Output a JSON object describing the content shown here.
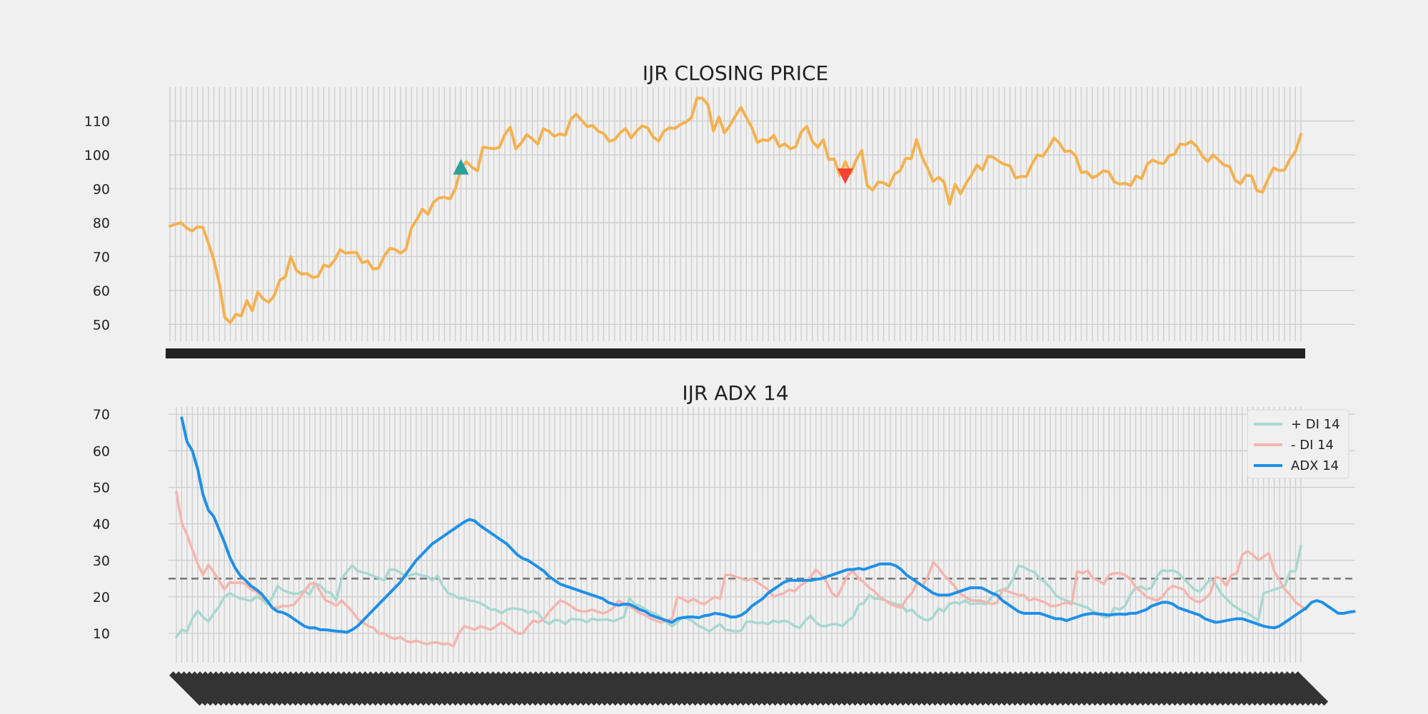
{
  "chart_data": [
    {
      "type": "line",
      "title": "IJR CLOSING PRICE",
      "xlabel": "",
      "ylabel": "",
      "ylim": [
        45,
        120
      ],
      "yticks": [
        50,
        60,
        70,
        80,
        90,
        100,
        110
      ],
      "grid": true,
      "series": [
        {
          "name": "",
          "color": "#f5b14e",
          "values": [
            79,
            79.5,
            80,
            78.5,
            77.5,
            78.8,
            78.6,
            74,
            69,
            62,
            52,
            50.5,
            53,
            52.5,
            57,
            54,
            59.5,
            57.5,
            56.5,
            58.5,
            63,
            64,
            70,
            66,
            64.8,
            65,
            63.8,
            64.2,
            67.5,
            67,
            69,
            72,
            71,
            71.2,
            71.2,
            68.2,
            68.7,
            66.3,
            66.6,
            70,
            72.4,
            72.1,
            71,
            72.2,
            78.5,
            81,
            84,
            82.5,
            86,
            87.3,
            87.5,
            87,
            90,
            96,
            98,
            96.4,
            95.3,
            102.3,
            102,
            101.8,
            102.2,
            106,
            108.2,
            101.8,
            103.5,
            106,
            104.7,
            103.2,
            107.7,
            107,
            105.5,
            106.2,
            105.8,
            110.5,
            112,
            110.2,
            108.3,
            108.7,
            107,
            106.3,
            104,
            104.5,
            106.5,
            107.8,
            105,
            107,
            108.6,
            108,
            105.3,
            104.1,
            107,
            108,
            107.8,
            109,
            109.7,
            111,
            116.8,
            116.7,
            114.8,
            107,
            111.2,
            106.5,
            108.7,
            111.5,
            114,
            111,
            108,
            103.7,
            104.5,
            104.2,
            105.8,
            102.4,
            103.3,
            101.8,
            102.5,
            106.8,
            108.4,
            104,
            102.2,
            104.5,
            98.6,
            98.8,
            94,
            98,
            94.5,
            98.6,
            101.3,
            91,
            89.6,
            92,
            91.8,
            90.8,
            94.4,
            95.3,
            99,
            98.9,
            104.5,
            99.4,
            96,
            92.2,
            93.4,
            92,
            85.4,
            91.3,
            88.5,
            91.6,
            94,
            97,
            95.5,
            99.6,
            99.3,
            98.1,
            97.2,
            96.8,
            93.2,
            93.6,
            93.6,
            97.2,
            100,
            99.6,
            102,
            105,
            103.5,
            101,
            101.2,
            99.6,
            94.8,
            95,
            93.2,
            94,
            95.3,
            95,
            92,
            91.4,
            91.6,
            91,
            93.8,
            93,
            97.2,
            98.5,
            97.7,
            97.4,
            99.8,
            100.2,
            103.2,
            103,
            104,
            102.5,
            99.8,
            98,
            100,
            98.5,
            97,
            96.6,
            92.6,
            91.5,
            94,
            93.8,
            89.4,
            89,
            92.9,
            96.2,
            95.4,
            95.5,
            98.7,
            101,
            106.1
          ]
        }
      ],
      "markers": [
        {
          "kind": "buy",
          "symbol": "triangle-up",
          "color": "#2aa198",
          "index": 53,
          "y": 96.5
        },
        {
          "kind": "sell",
          "symbol": "triangle-down",
          "color": "#f44336",
          "index": 123,
          "y": 93.7
        }
      ]
    },
    {
      "type": "line",
      "title": "IJR ADX 14",
      "xlabel": "",
      "ylabel": "",
      "ylim": [
        2,
        72
      ],
      "yticks": [
        10,
        20,
        30,
        40,
        50,
        60,
        70
      ],
      "grid": true,
      "hline": {
        "y": 25,
        "color": "#777777",
        "style": "dashed"
      },
      "legend": "top-right",
      "series": [
        {
          "name": "+ DI 14",
          "color": "#a8d8cf",
          "values": [
            9,
            11,
            10.5,
            14,
            16.2,
            14.5,
            13.2,
            15.5,
            17.3,
            20,
            21,
            20.3,
            19.5,
            19.3,
            18.8,
            20.1,
            19.3,
            18,
            19.8,
            23,
            21.8,
            21.3,
            20.8,
            21,
            21.7,
            20.6,
            23.5,
            23.2,
            21.5,
            21.1,
            19,
            25,
            26.9,
            28.6,
            27.1,
            26.7,
            26.3,
            25.7,
            25.2,
            24.5,
            27.5,
            27.4,
            26.7,
            25.6,
            26,
            26.4,
            25.8,
            25.7,
            24.5,
            25.8,
            23,
            21,
            20.5,
            19.6,
            19.6,
            19,
            18.8,
            18.3,
            17.5,
            16.5,
            16.5,
            15.5,
            16.5,
            16.8,
            16.7,
            16.5,
            15.6,
            16.2,
            15.3,
            13.4,
            12.6,
            13.7,
            13.5,
            12.6,
            14,
            13.8,
            13.8,
            13,
            14,
            13.6,
            13.8,
            13.8,
            13.3,
            13.9,
            14.5,
            19.6,
            18,
            17.5,
            16.6,
            15.8,
            15.3,
            14.3,
            13,
            12,
            13,
            14.5,
            14,
            13.2,
            12,
            11.4,
            10.5,
            11.6,
            12.5,
            11,
            10.8,
            10.5,
            10.8,
            13.2,
            13.2,
            12.8,
            13,
            12.5,
            13.5,
            13,
            13.5,
            13,
            12,
            11.5,
            13.5,
            14.8,
            13,
            12,
            12,
            12.5,
            12.5,
            12,
            13.5,
            14.5,
            17.8,
            18.3,
            20.5,
            19.5,
            19.5,
            19,
            18.5,
            18,
            17.8,
            16,
            16.5,
            15,
            14,
            13.5,
            14.5,
            16.8,
            16,
            18,
            18.5,
            18.2,
            19,
            18,
            18.2,
            18.2,
            18,
            20,
            21.5,
            22,
            22.5,
            25,
            28.5,
            28.2,
            27.3,
            26.8,
            25,
            24,
            22.5,
            20.5,
            19.5,
            19,
            18.5,
            18,
            17.5,
            17,
            16,
            15.5,
            14.5,
            14.5,
            17,
            16.5,
            17.5,
            20.5,
            22.5,
            22.8,
            22,
            22.5,
            25.7,
            27.3,
            27,
            27.3,
            26.5,
            25,
            23.5,
            22,
            21.5,
            23,
            25,
            23.5,
            21,
            19.5,
            18,
            17,
            16,
            15.5,
            14.5,
            13.5,
            21,
            21.5,
            22,
            22.5,
            23,
            27,
            27,
            34
          ]
        },
        {
          "name": "- DI 14",
          "color": "#f5b5ad",
          "values": [
            48.7,
            40.2,
            37,
            33,
            29,
            26,
            28.8,
            26.8,
            24.5,
            22,
            24,
            23.8,
            24,
            23.5,
            22,
            21.5,
            20,
            19,
            17,
            17,
            17.5,
            17.5,
            17.8,
            19.5,
            21.5,
            23.5,
            23.8,
            21.5,
            19,
            18.5,
            17.5,
            19,
            17.5,
            16,
            14,
            13,
            12,
            11.5,
            10,
            10,
            9,
            8.5,
            9,
            8,
            7.5,
            8,
            7.5,
            7,
            7.5,
            7.5,
            7,
            7.2,
            6.5,
            10,
            12,
            11.5,
            11,
            12,
            11.5,
            11,
            12,
            13,
            12,
            11,
            10,
            10,
            12,
            13.5,
            13,
            14,
            16,
            17.5,
            19,
            18.5,
            17.5,
            16.5,
            16,
            16,
            16.5,
            16,
            15.5,
            16,
            17,
            19,
            18,
            17.5,
            16.5,
            15.5,
            15,
            14,
            13.5,
            13,
            13.5,
            14,
            20,
            19.5,
            18.5,
            19.5,
            18.5,
            18,
            19,
            20,
            19.5,
            26,
            26,
            25.5,
            25,
            24.5,
            25,
            24,
            23,
            22,
            20,
            20.5,
            21,
            22,
            21.5,
            23,
            24,
            25.5,
            27.5,
            26,
            24,
            21,
            20,
            23,
            26,
            27,
            25,
            24,
            22.5,
            21.5,
            20,
            19,
            18,
            17.5,
            17,
            19.5,
            21,
            24,
            23,
            25.5,
            29.5,
            28,
            26,
            24.5,
            23,
            21,
            20,
            19,
            19,
            19,
            18.5,
            18,
            18.5,
            22,
            21.5,
            21,
            20.5,
            20.5,
            19,
            19.5,
            19,
            18.5,
            17.5,
            17.5,
            18,
            18.5,
            18,
            27,
            26.5,
            27.2,
            25,
            24.5,
            23.5,
            26,
            26.5,
            26.5,
            26,
            25,
            22.5,
            21.5,
            20,
            19.5,
            19,
            20,
            22,
            23,
            22.5,
            22,
            20,
            19,
            18.5,
            19.5,
            21,
            25.5,
            25,
            23,
            26,
            26.5,
            31.5,
            32.5,
            31.5,
            30,
            31,
            32,
            27,
            24.5,
            22,
            20.5,
            18.5,
            17.5,
            16.5
          ]
        },
        {
          "name": "ADX 14",
          "color": "#1e90e8",
          "values": [
            null,
            69,
            62.5,
            60,
            55,
            48,
            43.8,
            42,
            38.5,
            35,
            31,
            28,
            25.8,
            24.5,
            23,
            22,
            20.8,
            19,
            17,
            16,
            15.7,
            15,
            14,
            13,
            12,
            11.5,
            11.5,
            11,
            11,
            10.8,
            10.6,
            10.5,
            10.3,
            11,
            12,
            13.5,
            15,
            16.5,
            18,
            19.5,
            21,
            22.5,
            24,
            26,
            28,
            30,
            31.5,
            33,
            34.5,
            35.5,
            36.5,
            37.5,
            38.5,
            39.5,
            40.5,
            41.2,
            40.8,
            39.5,
            38.5,
            37.5,
            36.5,
            35.5,
            34.5,
            33,
            31.5,
            30.5,
            30,
            29,
            28,
            27,
            25.5,
            24.5,
            23.5,
            23,
            22.5,
            22,
            21.5,
            21,
            20.5,
            20,
            19.5,
            18.5,
            18,
            17.7,
            18,
            18,
            17.3,
            16.5,
            16,
            15,
            14.5,
            14,
            13.5,
            13,
            14,
            14.3,
            14.5,
            14.5,
            14.3,
            14.8,
            15,
            15.5,
            15.3,
            15,
            14.5,
            14.5,
            15,
            16,
            17.5,
            18.5,
            19.5,
            21,
            22,
            23,
            24,
            24.5,
            24.5,
            24.5,
            24.5,
            24.5,
            24.8,
            25,
            25.5,
            26,
            26.5,
            27,
            27.5,
            27.5,
            27.8,
            27.5,
            28,
            28.5,
            29,
            29,
            29,
            28.5,
            27.5,
            26,
            25,
            24,
            23,
            22,
            21,
            20.5,
            20.5,
            20.5,
            21,
            21.5,
            22,
            22.5,
            22.5,
            22.5,
            21.8,
            21,
            20.5,
            19,
            18,
            17,
            16,
            15.5,
            15.5,
            15.5,
            15.5,
            15,
            14.5,
            14,
            14,
            13.5,
            14,
            14.5,
            15,
            15.3,
            15.5,
            15.3,
            15.2,
            15,
            15.2,
            15.3,
            15.2,
            15.5,
            15.5,
            16,
            16.5,
            17.5,
            18,
            18.5,
            18.5,
            18,
            17,
            16.5,
            16,
            15.5,
            15,
            14,
            13.5,
            13,
            13.2,
            13.5,
            13.8,
            14,
            14,
            13.5,
            13,
            12.5,
            12,
            11.7,
            11.5,
            12,
            13,
            14,
            15,
            16,
            17,
            18.5,
            19,
            18.5,
            17.5,
            16.5,
            15.5,
            15.5,
            15.8,
            16
          ]
        }
      ]
    }
  ]
}
